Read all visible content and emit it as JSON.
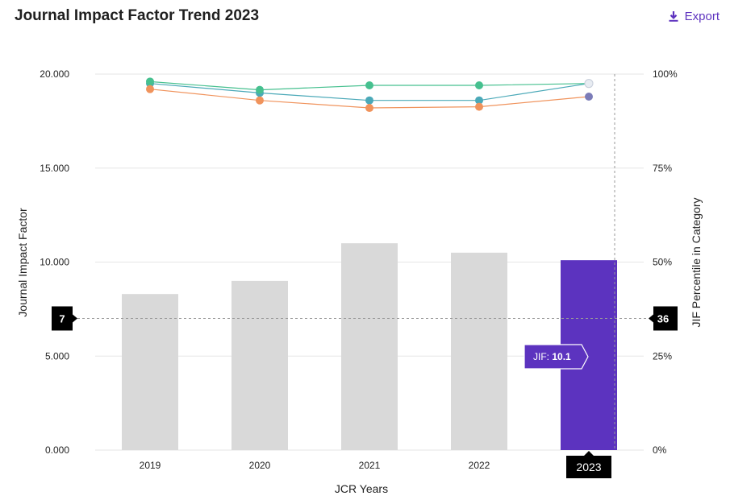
{
  "header": {
    "title": "Journal Impact Factor Trend 2023",
    "export_label": "Export",
    "export_icon": "download-icon"
  },
  "colors": {
    "bar_default": "#d9d9d9",
    "bar_selected": "#5c33bf",
    "line_teal": "#4ba9b8",
    "line_green": "#46c08f",
    "line_orange": "#f0935c",
    "marker_purple": "#7b7cb8",
    "accent": "#5e33bf"
  },
  "chart_data": {
    "type": "bar",
    "xlabel": "JCR Years",
    "ylabel": "Journal Impact Factor",
    "y2label": "JIF Percentile in Category",
    "categories": [
      "2019",
      "2020",
      "2021",
      "2022",
      "2023"
    ],
    "ylim": [
      0,
      20
    ],
    "y_ticks": [
      "0.000",
      "5.000",
      "10.000",
      "15.000",
      "20.000"
    ],
    "y_tick_values": [
      0,
      5,
      10,
      15,
      20
    ],
    "y2lim": [
      0,
      100
    ],
    "y2_ticks": [
      "0%",
      "25%",
      "50%",
      "75%",
      "100%"
    ],
    "y2_tick_values": [
      0,
      25,
      50,
      75,
      100
    ],
    "series": [
      {
        "name": "Journal Impact Factor",
        "type": "bar",
        "values": [
          8.3,
          9.0,
          11.0,
          10.5,
          10.1
        ]
      }
    ],
    "percentile_series": [
      {
        "values": [
          97.5,
          95.0,
          93.0,
          93.0,
          97.5
        ]
      },
      {
        "values": [
          98.0,
          95.8,
          97.0,
          97.0,
          97.5
        ]
      },
      {
        "values": [
          96.0,
          93.0,
          91.0,
          91.3,
          94.0
        ]
      }
    ],
    "selected_index": 4,
    "selected_category_label": "2023",
    "tooltip": {
      "label": "JIF:",
      "value": "10.1"
    },
    "crosshair": {
      "left_value": 7,
      "left_label": "7",
      "right_label": "36"
    },
    "grid": true,
    "legend": "none"
  }
}
